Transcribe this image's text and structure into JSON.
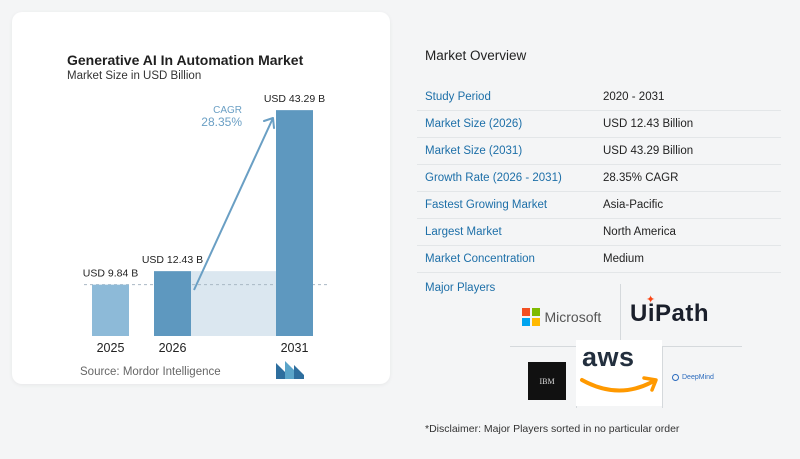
{
  "chart_data": {
    "type": "bar",
    "title": "Generative AI In Automation Market",
    "subtitle": "Market Size in USD Billion",
    "categories": [
      "2025",
      "2026",
      "2031"
    ],
    "values": [
      9.84,
      12.43,
      43.29
    ],
    "data_labels": [
      "USD 9.84 B",
      "USD 12.43 B",
      "USD 43.29 B"
    ],
    "ylim": [
      0,
      46
    ],
    "cagr_label": "CAGR",
    "cagr_value": "28.35%",
    "colors": {
      "bar": "#5e98bf",
      "bar_light": "#8dbad8",
      "band": "#dbe7f0",
      "arrow": "#6a9fc4",
      "cagr_text": "#6a9fc4"
    },
    "grid": false
  },
  "source": "Source:  Mordor Intelligence",
  "overview": {
    "title": "Market Overview",
    "rows": [
      {
        "k": "Study Period",
        "v": "2020 - 2031"
      },
      {
        "k": "Market Size (2026)",
        "v": "USD 12.43 Billion"
      },
      {
        "k": "Market Size (2031)",
        "v": "USD 43.29 Billion"
      },
      {
        "k": "Growth Rate (2026 - 2031)",
        "v": "28.35% CAGR"
      },
      {
        "k": "Fastest Growing Market",
        "v": "Asia-Pacific"
      },
      {
        "k": "Largest Market",
        "v": "North America"
      },
      {
        "k": "Market Concentration",
        "v": "Medium"
      }
    ]
  },
  "major_players": {
    "label": "Major Players",
    "logos": {
      "microsoft": "Microsoft",
      "uipath": "UiPath",
      "ibm": "IBM",
      "aws": "aws",
      "deepmind": "DeepMind"
    }
  },
  "disclaimer": "*Disclaimer: Major Players sorted in no particular order"
}
